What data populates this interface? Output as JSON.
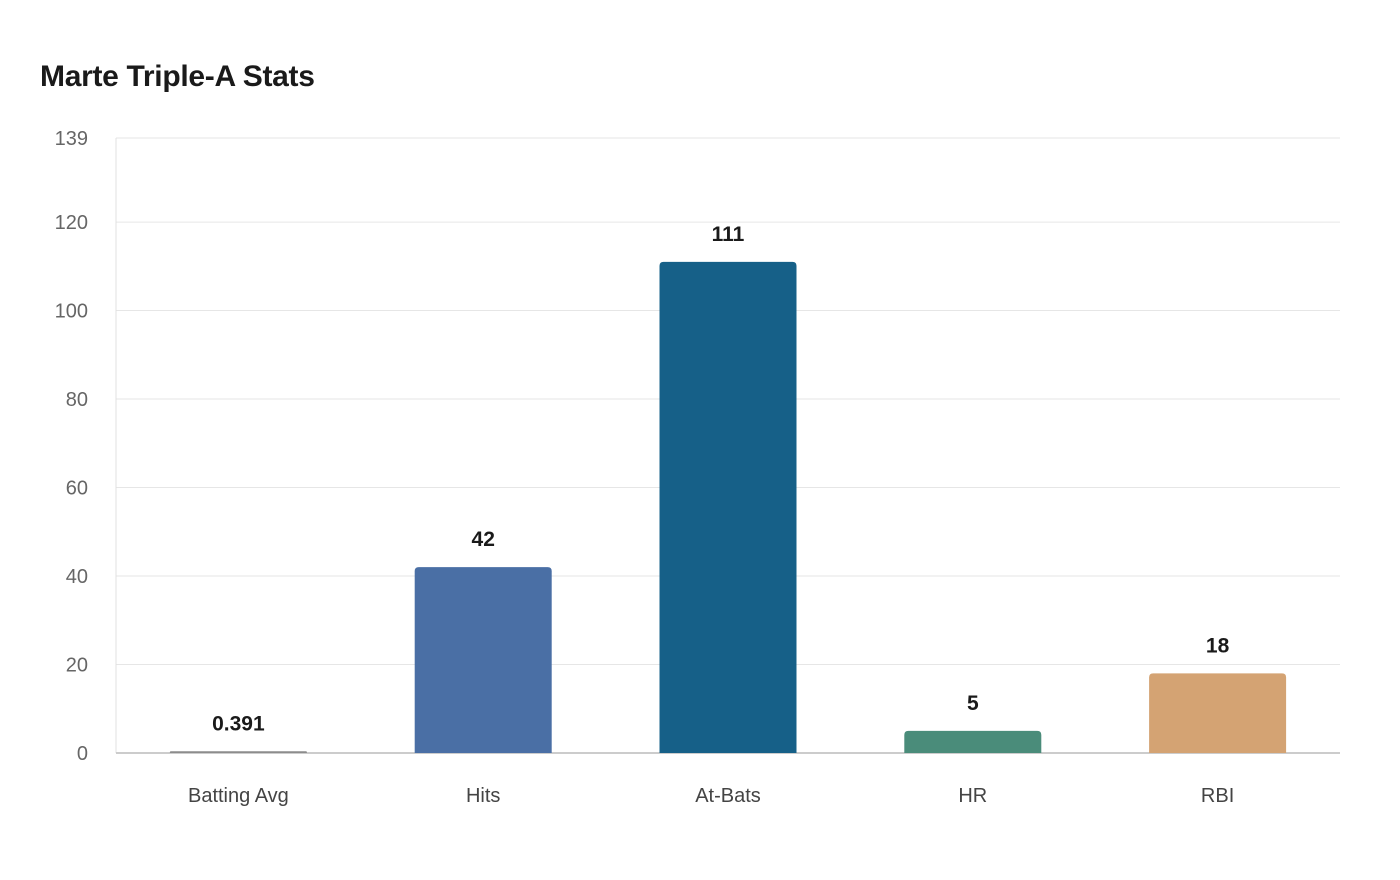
{
  "chart_data": {
    "type": "bar",
    "title": "Marte Triple-A Stats",
    "xlabel": "",
    "ylabel": "",
    "categories": [
      "Batting Avg",
      "Hits",
      "At-Bats",
      "HR",
      "RBI"
    ],
    "values": [
      0.391,
      42,
      111,
      5,
      18
    ],
    "value_labels": [
      "0.391",
      "42",
      "111",
      "5",
      "18"
    ],
    "colors": [
      "#8c8c8c",
      "#4a6fa5",
      "#166088",
      "#4a8c7a",
      "#d4a373"
    ],
    "ylim": [
      0,
      139
    ],
    "yticks": [
      0,
      20,
      40,
      60,
      80,
      100,
      120,
      139
    ],
    "grid": true,
    "legend": "none"
  }
}
